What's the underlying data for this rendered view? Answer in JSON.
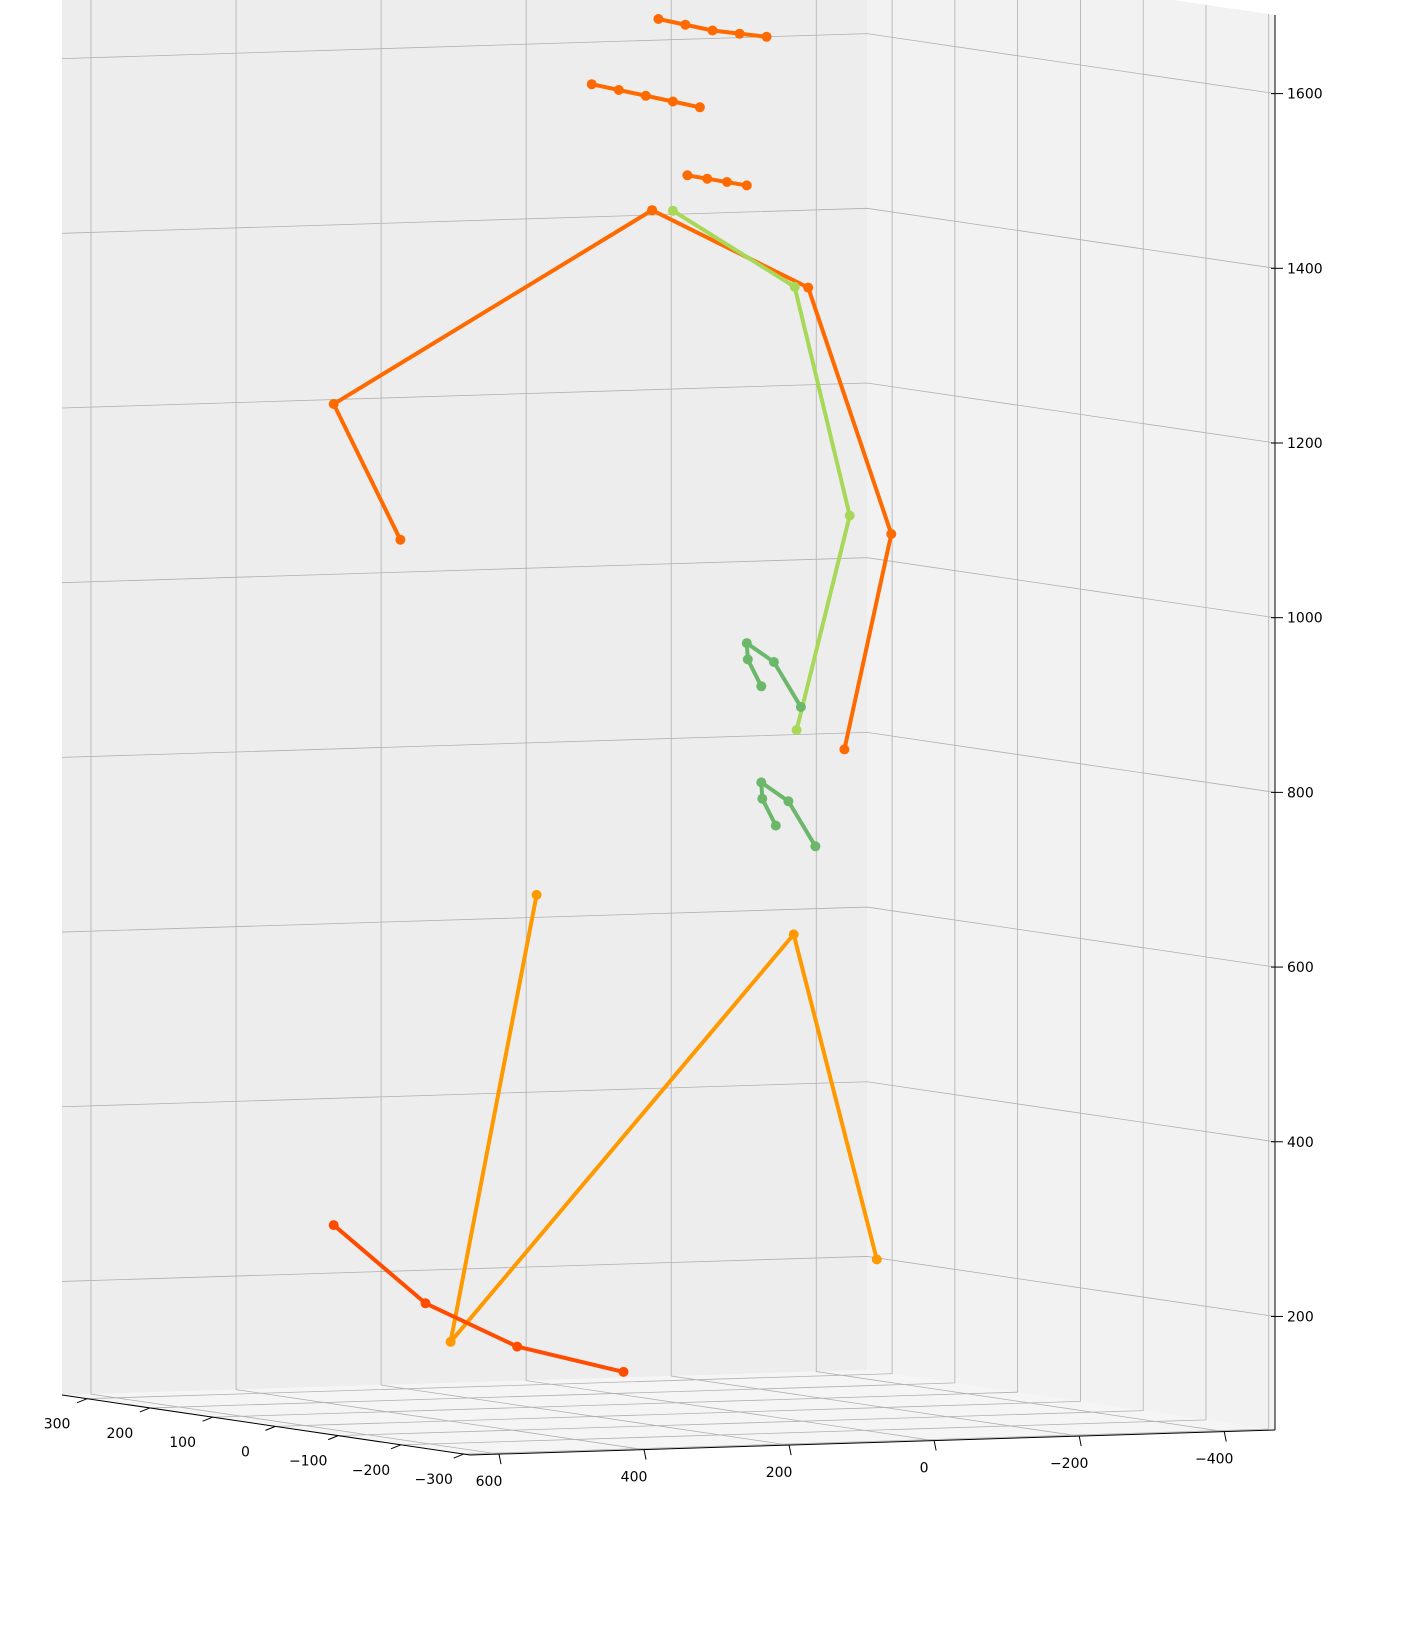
{
  "colors": {
    "background": "#ffffff",
    "pane_left": "#f2f2f2",
    "pane_right": "#ededed",
    "pane_floor": "#f5f5f5",
    "grid": "#b0b0b0",
    "palette": [
      "#2e9a6a",
      "#6cb86a",
      "#a8d858",
      "#ff9900",
      "#ff6a00",
      "#ff4c00"
    ]
  },
  "chart_data": {
    "type": "line",
    "subtype": "3d-line-with-markers",
    "title": "",
    "xlabel": "",
    "ylabel": "",
    "zlabel": "",
    "grid": true,
    "legend": "none",
    "xlim": [
      -310,
      340
    ],
    "ylim": [
      -470,
      640
    ],
    "zlim": [
      70,
      1690
    ],
    "x_ticks": [
      "300",
      "200",
      "100",
      "0",
      "−100",
      "−200",
      "−300"
    ],
    "x_tick_values": [
      300,
      200,
      100,
      0,
      -100,
      -200,
      -300
    ],
    "y_ticks": [
      "600",
      "400",
      "200",
      "0",
      "−200",
      "−400"
    ],
    "y_tick_values": [
      600,
      400,
      200,
      0,
      -200,
      -400
    ],
    "z_ticks": [
      "200",
      "400",
      "600",
      "800",
      "1000",
      "1200",
      "1400",
      "1600"
    ],
    "z_tick_values": [
      200,
      400,
      600,
      800,
      1000,
      1200,
      1400,
      1600
    ],
    "series": [
      {
        "kind": "head-marker-cluster",
        "color": "#ff6a00",
        "points": [
          [
            60,
            60,
            1660
          ],
          [
            40,
            40,
            1655
          ],
          [
            20,
            20,
            1650
          ],
          [
            0,
            0,
            1648
          ],
          [
            -20,
            -20,
            1646
          ]
        ]
      },
      {
        "kind": "head-marker-cluster",
        "color": "#ff6a00",
        "points": [
          [
            120,
            100,
            1580
          ],
          [
            100,
            80,
            1575
          ],
          [
            80,
            60,
            1570
          ],
          [
            60,
            40,
            1565
          ],
          [
            40,
            20,
            1560
          ]
        ]
      },
      {
        "kind": "shoulder-marker-cluster",
        "color": "#ff6a00",
        "points": [
          [
            60,
            20,
            1480
          ],
          [
            40,
            10,
            1478
          ],
          [
            20,
            0,
            1476
          ],
          [
            0,
            -10,
            1474
          ]
        ]
      },
      {
        "kind": "arm-bundle",
        "color": "#ff6a00",
        "points": [
          [
            70,
            60,
            1440
          ],
          [
            -40,
            -60,
            1360
          ],
          [
            -80,
            -140,
            1080
          ],
          [
            -40,
            -110,
            830
          ]
        ]
      },
      {
        "kind": "arm-bundle",
        "color": "#a8d858",
        "points": [
          [
            60,
            40,
            1440
          ],
          [
            -30,
            -50,
            1360
          ],
          [
            -60,
            -100,
            1100
          ],
          [
            -10,
            -70,
            850
          ]
        ]
      },
      {
        "kind": "hand-loop",
        "color": "#6cb86a",
        "points": [
          [
            0,
            -30,
            900
          ],
          [
            10,
            -20,
            930
          ],
          [
            0,
            -10,
            950
          ],
          [
            -20,
            -30,
            930
          ],
          [
            -40,
            -50,
            880
          ]
        ]
      },
      {
        "kind": "hand-loop",
        "color": "#6cb86a",
        "points": [
          [
            0,
            -50,
            740
          ],
          [
            10,
            -40,
            770
          ],
          [
            0,
            -30,
            790
          ],
          [
            -20,
            -50,
            770
          ],
          [
            -40,
            -70,
            720
          ]
        ]
      },
      {
        "kind": "fan-lines",
        "color": "#ff6a00",
        "points": [
          [
            70,
            60,
            1440
          ],
          [
            300,
            300,
            1200
          ],
          [
            240,
            260,
            1050
          ]
        ]
      },
      {
        "kind": "leg-lines",
        "color": "#ff9900",
        "points": [
          [
            150,
            150,
            650
          ],
          [
            160,
            260,
            140
          ],
          [
            -40,
            -40,
            620
          ],
          [
            -80,
            -120,
            250
          ]
        ]
      },
      {
        "kind": "foot-trail",
        "color": "#ff4c00",
        "points": [
          [
            300,
            300,
            260
          ],
          [
            200,
            260,
            180
          ],
          [
            100,
            220,
            140
          ],
          [
            0,
            160,
            120
          ]
        ]
      }
    ]
  }
}
